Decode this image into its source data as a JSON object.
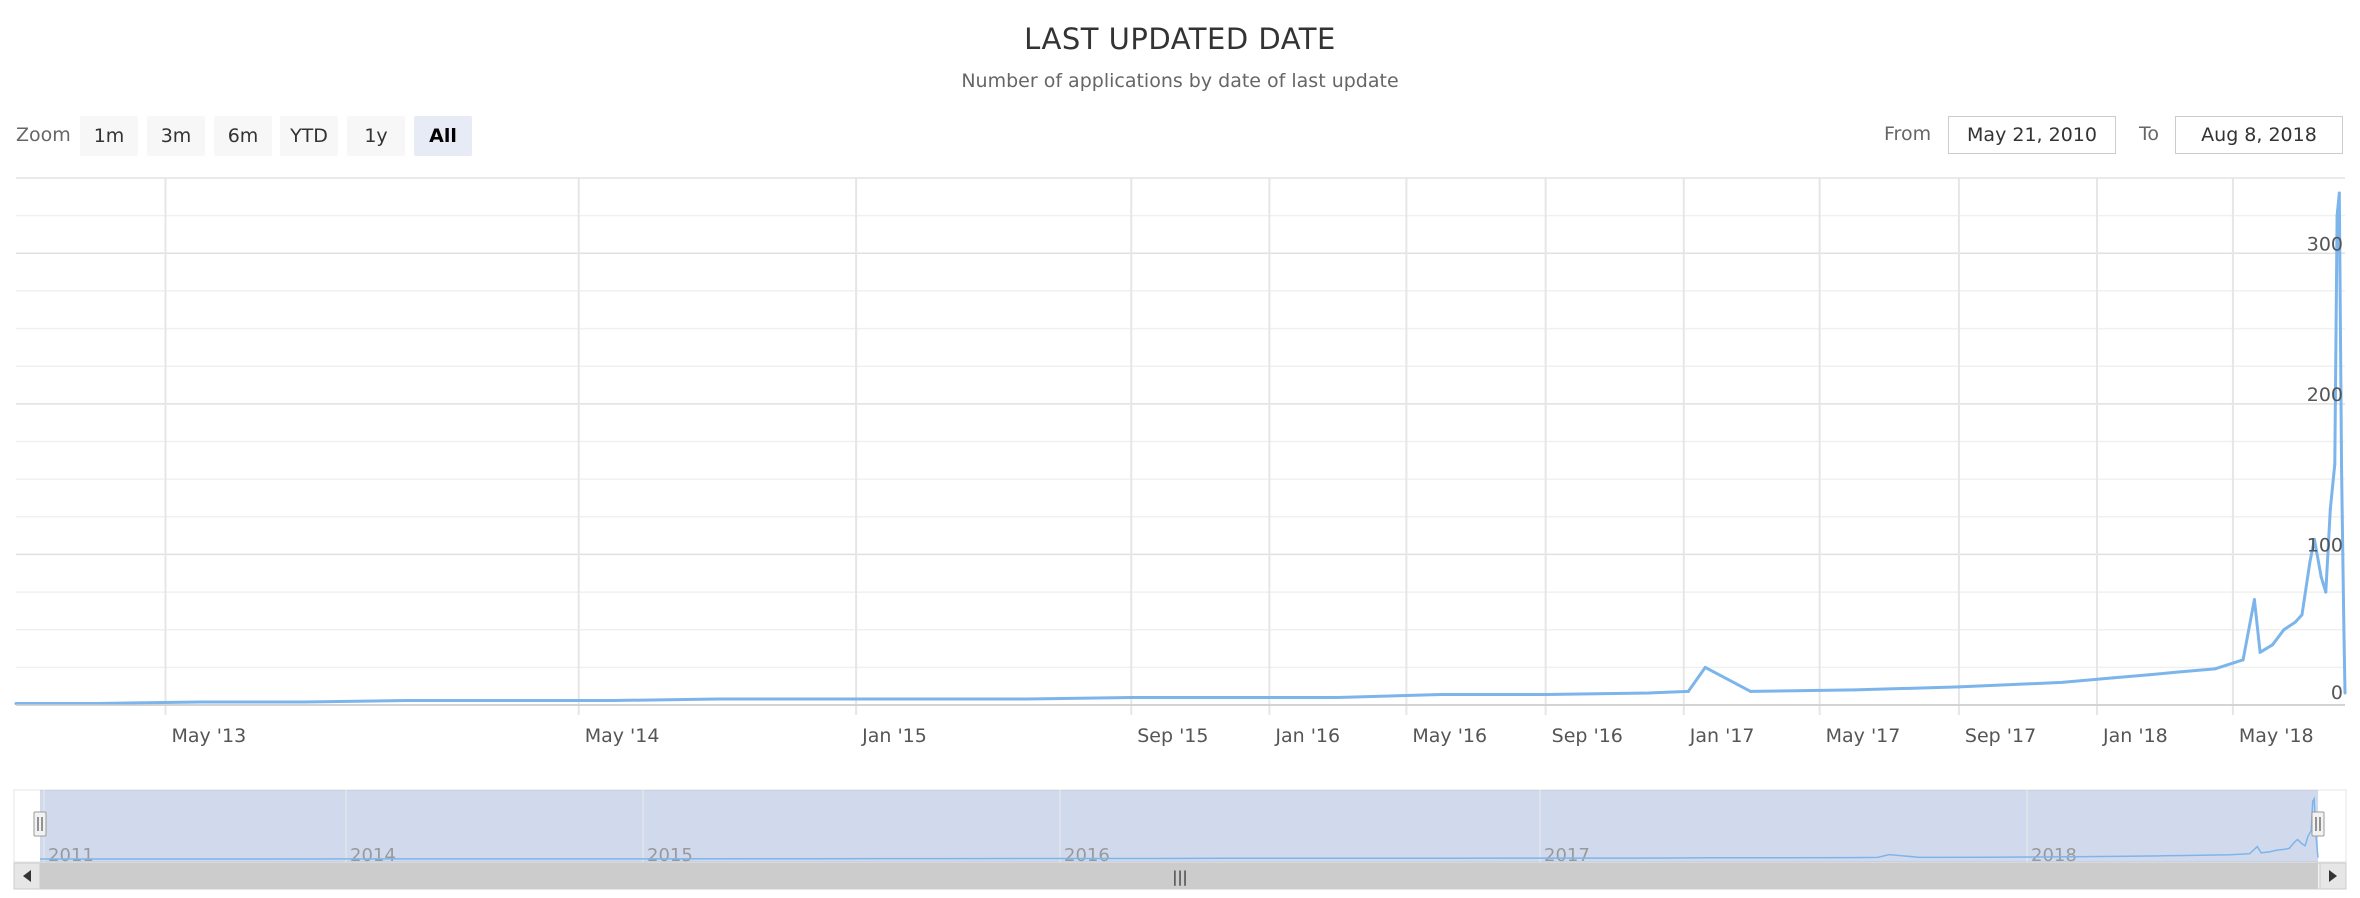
{
  "chart_data": {
    "type": "area",
    "title": "LAST UPDATED DATE",
    "subtitle": "Number of applications by date of last update",
    "xlabel": "",
    "ylabel": "",
    "ylim": [
      0,
      350
    ],
    "y_ticks": [
      0,
      100,
      200,
      300
    ],
    "x_range": [
      "2012-12-20",
      "2018-08-08"
    ],
    "x_ticks": [
      {
        "label": "May '13",
        "date": "2013-05-01"
      },
      {
        "label": "May '14",
        "date": "2014-05-01"
      },
      {
        "label": "Jan '15",
        "date": "2015-01-01"
      },
      {
        "label": "Sep '15",
        "date": "2015-09-01"
      },
      {
        "label": "Jan '16",
        "date": "2016-01-01"
      },
      {
        "label": "May '16",
        "date": "2016-05-01"
      },
      {
        "label": "Sep '16",
        "date": "2016-09-01"
      },
      {
        "label": "Jan '17",
        "date": "2017-01-01"
      },
      {
        "label": "May '17",
        "date": "2017-05-01"
      },
      {
        "label": "Sep '17",
        "date": "2017-09-01"
      },
      {
        "label": "Jan '18",
        "date": "2018-01-01"
      },
      {
        "label": "May '18",
        "date": "2018-05-01"
      }
    ],
    "grid": true,
    "legend": "none",
    "line_color": "#7cb5ec",
    "series": [
      {
        "x": [
          "2012-12-20",
          "2013-03-01",
          "2013-06-01",
          "2013-09-01",
          "2013-12-01",
          "2014-03-01",
          "2014-06-01",
          "2014-09-01",
          "2014-12-01",
          "2015-03-01",
          "2015-06-01",
          "2015-09-01",
          "2015-12-01",
          "2016-03-01",
          "2016-06-01",
          "2016-09-01",
          "2016-12-01",
          "2017-01-05",
          "2017-01-20",
          "2017-03-01",
          "2017-06-01",
          "2017-09-01",
          "2017-12-01",
          "2018-01-15",
          "2018-02-15",
          "2018-03-15",
          "2018-04-15",
          "2018-05-10",
          "2018-05-20",
          "2018-05-25",
          "2018-06-05",
          "2018-06-15",
          "2018-06-25",
          "2018-07-01",
          "2018-07-08",
          "2018-07-12",
          "2018-07-18",
          "2018-07-22",
          "2018-07-26",
          "2018-07-30",
          "2018-08-01",
          "2018-08-03",
          "2018-08-05",
          "2018-08-07",
          "2018-08-08"
        ],
        "y": [
          1,
          1,
          2,
          2,
          3,
          3,
          3,
          4,
          4,
          4,
          4,
          5,
          5,
          5,
          7,
          7,
          8,
          9,
          25,
          9,
          10,
          12,
          15,
          18,
          20,
          22,
          24,
          30,
          70,
          35,
          40,
          50,
          55,
          60,
          95,
          110,
          85,
          75,
          130,
          160,
          325,
          340,
          155,
          50,
          8
        ]
      }
    ]
  },
  "controls": {
    "zoom_label": "Zoom",
    "zoom_buttons": [
      "1m",
      "3m",
      "6m",
      "YTD",
      "1y",
      "All"
    ],
    "zoom_active": "All",
    "from_label": "From",
    "from_value": "May 21, 2010",
    "to_label": "To",
    "to_value": "Aug 8, 2018"
  },
  "navigator": {
    "year_labels": [
      "2011",
      "2014",
      "2015",
      "2016",
      "2017",
      "2018"
    ],
    "handle_glyph": "|||"
  }
}
